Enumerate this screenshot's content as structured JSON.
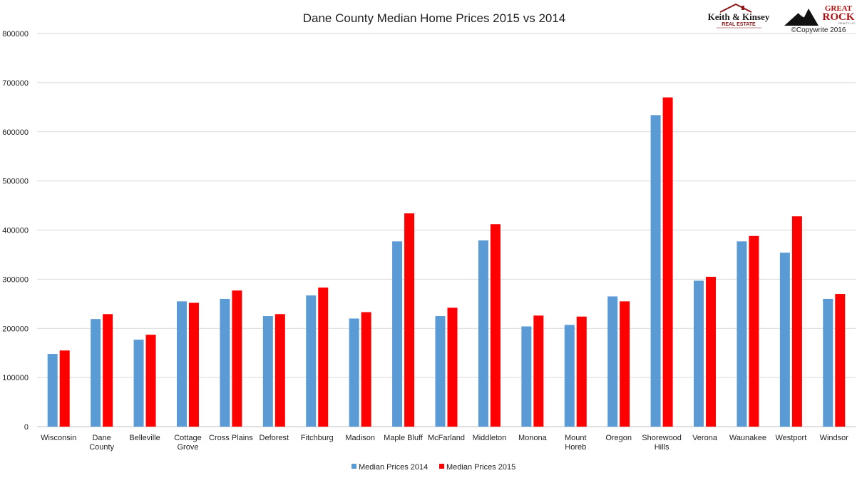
{
  "chart_data": {
    "type": "bar",
    "title": "Dane County Median Home Prices 2015 vs 2014",
    "ylim": [
      0,
      800000
    ],
    "yticks": [
      "0",
      "100000",
      "200000",
      "300000",
      "400000",
      "500000",
      "600000",
      "700000",
      "800000"
    ],
    "grid": true,
    "legend_position": "bottom",
    "categories": [
      [
        "Wisconsin"
      ],
      [
        "Dane",
        "County"
      ],
      [
        "Belleville"
      ],
      [
        "Cottage",
        "Grove"
      ],
      [
        "Cross Plains"
      ],
      [
        "Deforest"
      ],
      [
        "Fitchburg"
      ],
      [
        "Madison"
      ],
      [
        "Maple Bluff"
      ],
      [
        "McFarland"
      ],
      [
        "Middleton"
      ],
      [
        "Monona"
      ],
      [
        "Mount",
        "Horeb"
      ],
      [
        "Oregon"
      ],
      [
        "Shorewood",
        "Hills"
      ],
      [
        "Verona"
      ],
      [
        "Waunakee"
      ],
      [
        "Westport"
      ],
      [
        "Windsor"
      ]
    ],
    "series": [
      {
        "name": "Median Prices 2014",
        "color": "#5b9bd5",
        "values": [
          148000,
          219000,
          177000,
          255000,
          260000,
          225000,
          267000,
          220000,
          377000,
          225000,
          379000,
          204000,
          207000,
          265000,
          634000,
          297000,
          377000,
          354000,
          260000
        ]
      },
      {
        "name": "Median Prices 2015",
        "color": "#ff0000",
        "values": [
          155000,
          229000,
          187000,
          252000,
          277000,
          229000,
          283000,
          233000,
          434000,
          242000,
          412000,
          226000,
          224000,
          255000,
          670000,
          305000,
          388000,
          428000,
          270000
        ]
      }
    ]
  },
  "logos": {
    "keith_kinsey_name": "Keith & Kinsey",
    "keith_kinsey_sub": "REAL ESTATE",
    "great_rock_top": "GREAT",
    "great_rock_main": "ROCK",
    "great_rock_sub": "REALTY LLC",
    "copyright": "©Copywrite 2016"
  }
}
